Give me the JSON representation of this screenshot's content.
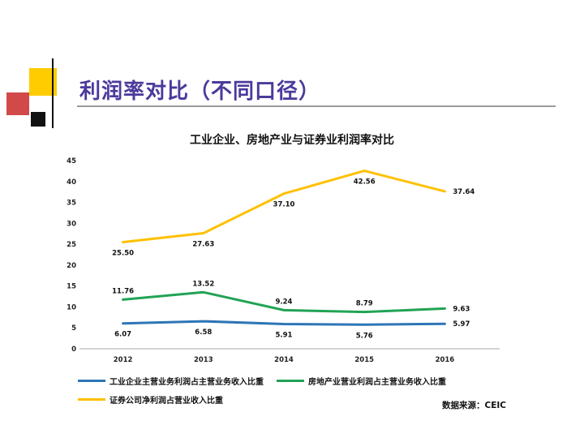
{
  "slide": {
    "title": "利润率对比（不同口径）",
    "source_label": "数据来源：CEIC"
  },
  "chart_data": {
    "type": "line",
    "title": "工业企业、房地产业与证券业利润率对比",
    "categories": [
      "2012",
      "2013",
      "2014",
      "2015",
      "2016"
    ],
    "series": [
      {
        "name": "工业企业主营业务利润占主营业务收入比重",
        "color": "#2E75B6",
        "values": [
          6.07,
          6.58,
          5.91,
          5.76,
          5.97
        ],
        "label_dy": 16
      },
      {
        "name": "房地产业营业利润占主营业务收入比重",
        "color": "#21A354",
        "values": [
          11.76,
          13.52,
          9.24,
          8.79,
          9.63
        ],
        "label_dy": -8
      },
      {
        "name": "证券公司净利润占营业收入比重",
        "color": "#FFC000",
        "values": [
          25.5,
          27.63,
          37.1,
          42.56,
          37.64
        ],
        "label_dy": 16
      }
    ],
    "ylim": [
      0,
      45
    ],
    "ytick_step": 5,
    "grid": false,
    "legend_position": "bottom"
  }
}
